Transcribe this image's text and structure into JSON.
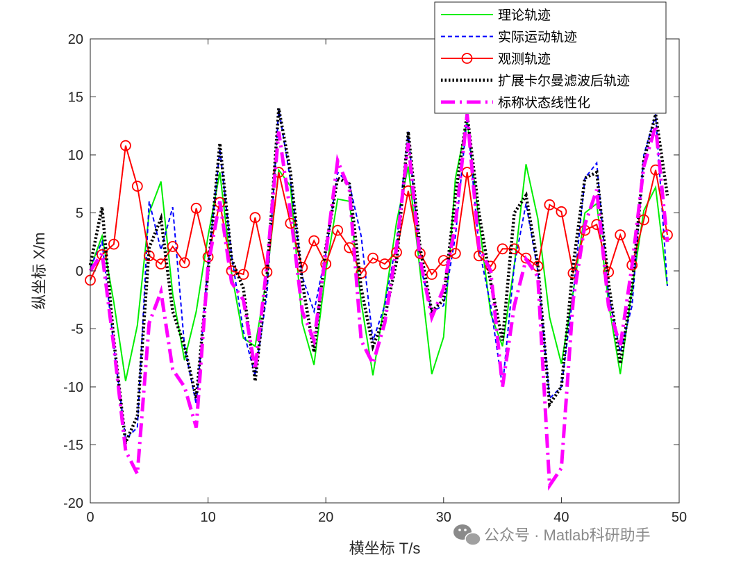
{
  "chart_data": {
    "type": "line",
    "title": "",
    "xlabel": "横坐标 T/s",
    "ylabel": "纵坐标 X/m",
    "xlim": [
      0,
      50
    ],
    "ylim": [
      -20,
      20
    ],
    "xticks": [
      0,
      10,
      20,
      30,
      40,
      50
    ],
    "yticks": [
      -20,
      -15,
      -10,
      -5,
      0,
      5,
      10,
      15,
      20
    ],
    "grid": false,
    "legend_position": "top-right",
    "series": [
      {
        "name": "理论轨迹",
        "color": "#00ee00",
        "style": "solid",
        "x": [
          0,
          1,
          2,
          3,
          4,
          5,
          6,
          7,
          8,
          9,
          10,
          11,
          12,
          13,
          14,
          15,
          16,
          17,
          18,
          19,
          20,
          21,
          22,
          23,
          24,
          25,
          26,
          27,
          28,
          29,
          30,
          31,
          32,
          33,
          34,
          35,
          36,
          37,
          38,
          39,
          40,
          41,
          42,
          43,
          44,
          45,
          46,
          47,
          48,
          49
        ],
        "values": [
          0.2,
          3.0,
          -2.7,
          -9.5,
          -4.7,
          5.0,
          7.7,
          -2.0,
          -7.7,
          -3.5,
          3.0,
          8.5,
          -0.2,
          -5.8,
          -6.5,
          -0.5,
          8.7,
          7.3,
          -4.5,
          -8.1,
          0.0,
          6.2,
          6.0,
          -2.7,
          -9.0,
          -2.7,
          4.2,
          9.0,
          0.0,
          -8.9,
          -5.7,
          8.0,
          13.0,
          4.3,
          -3.7,
          -6.5,
          0.5,
          9.2,
          4.5,
          -4.0,
          -8.0,
          -1.8,
          5.0,
          5.8,
          -2.7,
          -8.9,
          -1.5,
          5.2,
          7.2,
          -1.3
        ]
      },
      {
        "name": "实际运动轨迹",
        "color": "#0000ff",
        "style": "dashed",
        "x": [
          0,
          1,
          2,
          3,
          4,
          5,
          6,
          7,
          8,
          9,
          10,
          11,
          12,
          13,
          14,
          15,
          16,
          17,
          18,
          19,
          20,
          21,
          22,
          23,
          24,
          25,
          26,
          27,
          28,
          29,
          30,
          31,
          32,
          33,
          34,
          35,
          36,
          37,
          38,
          39,
          40,
          41,
          42,
          43,
          44,
          45,
          46,
          47,
          48,
          49
        ],
        "values": [
          0.3,
          2.5,
          -6.5,
          -14.5,
          -13.5,
          6.0,
          1.8,
          5.5,
          -6.5,
          -11.5,
          0.5,
          10.5,
          1.3,
          -5.2,
          -9.0,
          -2.0,
          14.0,
          7.8,
          -0.5,
          -3.5,
          1.5,
          8.5,
          7.5,
          3.0,
          -6.0,
          -3.0,
          2.5,
          12.0,
          0.5,
          -3.5,
          -3.0,
          3.0,
          13.3,
          2.0,
          -3.0,
          -10.0,
          0.5,
          5.8,
          0.0,
          -11.0,
          -10.0,
          -2.0,
          8.0,
          9.3,
          -2.0,
          -7.0,
          -3.0,
          10.0,
          13.5,
          -1.3
        ]
      },
      {
        "name": "观测轨迹",
        "color": "#ff0000",
        "style": "solid-circle",
        "x": [
          0,
          1,
          2,
          3,
          4,
          5,
          6,
          7,
          8,
          9,
          10,
          11,
          12,
          13,
          14,
          15,
          16,
          17,
          18,
          19,
          20,
          21,
          22,
          23,
          24,
          25,
          26,
          27,
          28,
          29,
          30,
          31,
          32,
          33,
          34,
          35,
          36,
          37,
          38,
          39,
          40,
          41,
          42,
          43,
          44,
          45,
          46,
          47,
          48,
          49
        ],
        "values": [
          -0.8,
          1.4,
          2.3,
          10.8,
          7.3,
          1.3,
          0.6,
          2.1,
          0.7,
          5.4,
          1.2,
          5.9,
          0.0,
          -0.3,
          4.6,
          -0.1,
          8.5,
          4.1,
          0.3,
          2.6,
          0.6,
          3.5,
          2.0,
          -0.2,
          1.1,
          0.6,
          1.6,
          6.9,
          1.5,
          -0.3,
          0.9,
          1.5,
          8.5,
          1.3,
          0.4,
          1.9,
          1.9,
          1.1,
          0.4,
          5.7,
          5.1,
          -0.2,
          3.5,
          4.0,
          -0.1,
          3.1,
          0.5,
          4.4,
          8.7,
          3.1
        ]
      },
      {
        "name": "扩展卡尔曼滤波后轨迹",
        "color": "#000000",
        "style": "dotted",
        "x": [
          0,
          1,
          2,
          3,
          4,
          5,
          6,
          7,
          8,
          9,
          10,
          11,
          12,
          13,
          14,
          15,
          16,
          17,
          18,
          19,
          20,
          21,
          22,
          23,
          24,
          25,
          26,
          27,
          28,
          29,
          30,
          31,
          32,
          33,
          34,
          35,
          36,
          37,
          38,
          39,
          40,
          41,
          42,
          43,
          44,
          45,
          46,
          47,
          48,
          49
        ],
        "values": [
          0.5,
          5.5,
          -6.0,
          -14.8,
          -12.5,
          2.0,
          4.5,
          -3.5,
          -6.5,
          -11.0,
          0.0,
          11.0,
          1.0,
          -1.5,
          -9.5,
          -0.5,
          14.0,
          8.5,
          -1.0,
          -7.0,
          2.0,
          8.0,
          7.5,
          -1.5,
          -6.5,
          -4.0,
          0.8,
          12.0,
          2.0,
          -3.5,
          -2.5,
          6.5,
          13.5,
          5.0,
          -1.0,
          -6.0,
          5.0,
          6.5,
          0.5,
          -11.5,
          -10.0,
          0.5,
          8.0,
          8.5,
          -1.0,
          -8.0,
          -1.5,
          9.5,
          13.5,
          6.5
        ]
      },
      {
        "name": "标称状态线性化",
        "color": "#ff00ff",
        "style": "dashdot",
        "x": [
          0,
          1,
          2,
          3,
          4,
          5,
          6,
          7,
          8,
          9,
          10,
          11,
          12,
          13,
          14,
          15,
          16,
          17,
          18,
          19,
          20,
          21,
          22,
          23,
          24,
          25,
          26,
          27,
          28,
          29,
          30,
          31,
          32,
          33,
          34,
          35,
          36,
          37,
          38,
          39,
          40,
          41,
          42,
          43,
          44,
          45,
          46,
          47,
          48,
          49
        ],
        "values": [
          0.0,
          1.5,
          -6.5,
          -15.5,
          -17.5,
          -4.5,
          -1.8,
          -8.5,
          -10.0,
          -13.5,
          0.5,
          6.0,
          -1.0,
          -2.5,
          -8.5,
          0.5,
          12.0,
          5.0,
          -3.5,
          -6.0,
          1.5,
          9.5,
          7.0,
          -6.0,
          -8.0,
          -4.5,
          2.0,
          11.0,
          1.0,
          -4.0,
          -1.5,
          4.0,
          13.5,
          2.0,
          0.0,
          -10.0,
          -3.0,
          1.0,
          -0.5,
          -18.5,
          -17.0,
          -2.5,
          4.0,
          7.0,
          -3.0,
          -6.5,
          0.5,
          9.0,
          12.5,
          2.5
        ]
      }
    ]
  },
  "watermark": {
    "icon": "wechat-icon",
    "text": "公众号 · Matlab科研助手"
  }
}
